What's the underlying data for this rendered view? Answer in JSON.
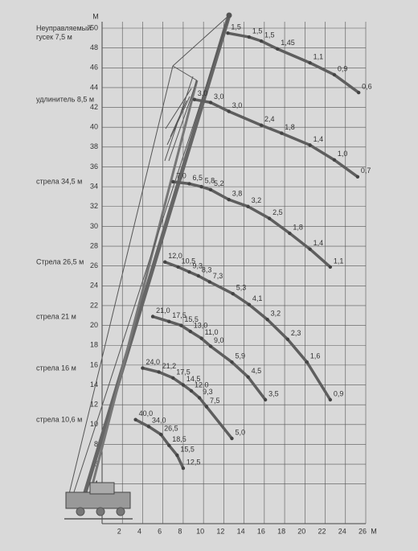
{
  "chart_data": {
    "type": "line",
    "xlabel": "М",
    "ylabel": "М",
    "xlim": [
      0,
      26
    ],
    "ylim": [
      0,
      50
    ],
    "xticks": [
      2,
      4,
      6,
      8,
      10,
      12,
      14,
      16,
      18,
      20,
      22,
      24,
      26
    ],
    "yticks": [
      4,
      6,
      8,
      10,
      12,
      14,
      16,
      18,
      20,
      22,
      24,
      26,
      28,
      30,
      32,
      34,
      36,
      38,
      40,
      42,
      44,
      46,
      48,
      50
    ],
    "grid": true,
    "color": "#5e5e5e",
    "series": [
      {
        "name": "Неуправляемый гусек 7,5 м",
        "x": [
          12.4,
          14.5,
          15.7,
          17.3,
          20.5,
          22.9,
          25.3
        ],
        "y": [
          49.5,
          49.1,
          48.7,
          47.9,
          46.5,
          45.3,
          43.5
        ],
        "point_labels": [
          "1,5",
          "1,5",
          "1,5",
          "1,45",
          "1,1",
          "0,9",
          "0,6"
        ]
      },
      {
        "name": "удлинитель 8,5 м",
        "x": [
          9.1,
          10.7,
          12.5,
          15.7,
          17.7,
          20.5,
          22.9,
          25.2
        ],
        "y": [
          42.8,
          42.5,
          41.6,
          40.2,
          39.4,
          38.2,
          36.7,
          35.0
        ],
        "point_labels": [
          "3,0",
          "3,0",
          "3,0",
          "2,4",
          "1,8",
          "1,4",
          "1,0",
          "0,7"
        ]
      },
      {
        "name": "стрела 34,5 м",
        "x": [
          7.0,
          8.6,
          9.8,
          10.7,
          12.5,
          14.4,
          16.5,
          18.5,
          20.5,
          22.5
        ],
        "y": [
          34.5,
          34.3,
          34.0,
          33.7,
          32.7,
          32.0,
          30.8,
          29.3,
          27.7,
          25.9
        ],
        "point_labels": [
          "7,0",
          "6,5",
          "5,8",
          "5,2",
          "3,8",
          "3,2",
          "2,5",
          "1,8",
          "1,4",
          "1,1"
        ]
      },
      {
        "name": "Стрела 26,5 м",
        "x": [
          6.2,
          7.5,
          8.6,
          9.5,
          10.6,
          12.9,
          14.5,
          16.3,
          18.3,
          20.2,
          22.5
        ],
        "y": [
          26.4,
          25.9,
          25.4,
          25.0,
          24.4,
          23.2,
          22.1,
          20.6,
          18.6,
          16.3,
          12.5
        ],
        "point_labels": [
          "12,0",
          "10,5",
          "9,3",
          "8,3",
          "7,3",
          "5,3",
          "4,1",
          "3,2",
          "2,3",
          "1,6",
          "0,9"
        ]
      },
      {
        "name": "стрела 21 м",
        "x": [
          5.0,
          6.6,
          7.8,
          8.7,
          9.8,
          10.7,
          12.8,
          14.4,
          16.1
        ],
        "y": [
          20.9,
          20.4,
          20.0,
          19.4,
          18.7,
          17.9,
          16.3,
          14.8,
          12.5
        ],
        "point_labels": [
          "21,0",
          "17,5",
          "15,5",
          "13,0",
          "11,0",
          "9,0",
          "5,9",
          "4,5",
          "3,5"
        ]
      },
      {
        "name": "стрела 16 м",
        "x": [
          4.0,
          5.6,
          7.0,
          8.0,
          8.8,
          9.6,
          10.3,
          12.8
        ],
        "y": [
          15.7,
          15.3,
          14.7,
          14.0,
          13.4,
          12.7,
          11.8,
          8.6
        ],
        "point_labels": [
          "24,0",
          "21,2",
          "17,5",
          "14,5",
          "12,0",
          "9,3",
          "7,5",
          "5,0"
        ]
      },
      {
        "name": "стрела 10,6 м",
        "x": [
          3.3,
          4.6,
          5.8,
          6.6,
          7.4,
          8.0
        ],
        "y": [
          10.5,
          9.8,
          9.0,
          7.9,
          6.9,
          5.6
        ],
        "point_labels": [
          "40,0",
          "34,0",
          "26,5",
          "18,5",
          "15,5",
          "12,5"
        ]
      }
    ]
  }
}
